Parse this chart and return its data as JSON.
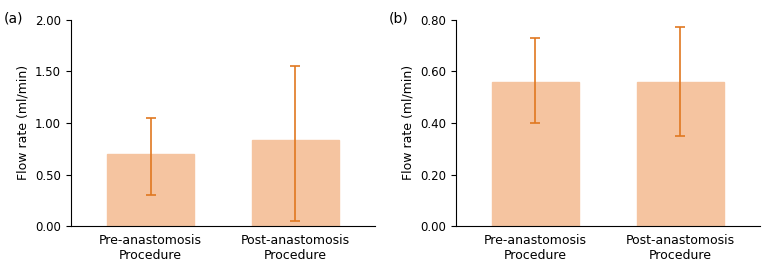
{
  "panel_a": {
    "label": "(a)",
    "cat1_line1": "Pre-anastomosis",
    "cat2_line1": "Post-anastomosis",
    "cat_line2": "Procedure",
    "values": [
      0.7,
      0.83
    ],
    "err_lower": [
      0.4,
      0.78
    ],
    "err_upper": [
      0.35,
      0.72
    ],
    "ylim": [
      0.0,
      2.0
    ],
    "yticks": [
      0.0,
      0.5,
      1.0,
      1.5,
      2.0
    ],
    "ylabel": "Flow rate (ml/min)"
  },
  "panel_b": {
    "label": "(b)",
    "cat1_line1": "Pre-anastomosis",
    "cat2_line1": "Post-anastomosis",
    "cat_line2": "Procedure",
    "values": [
      0.56,
      0.56
    ],
    "err_lower": [
      0.16,
      0.21
    ],
    "err_upper": [
      0.17,
      0.21
    ],
    "ylim": [
      0.0,
      0.8
    ],
    "yticks": [
      0.0,
      0.2,
      0.4,
      0.6,
      0.8
    ],
    "ylabel": "Flow rate (ml/min)"
  },
  "bar_color": "#F5C4A0",
  "error_color": "#E07820",
  "background_color": "#ffffff",
  "bar_width": 0.6,
  "fontsize_ylabel": 9,
  "fontsize_tick": 8.5,
  "fontsize_xtick": 9,
  "fontsize_panel": 10
}
